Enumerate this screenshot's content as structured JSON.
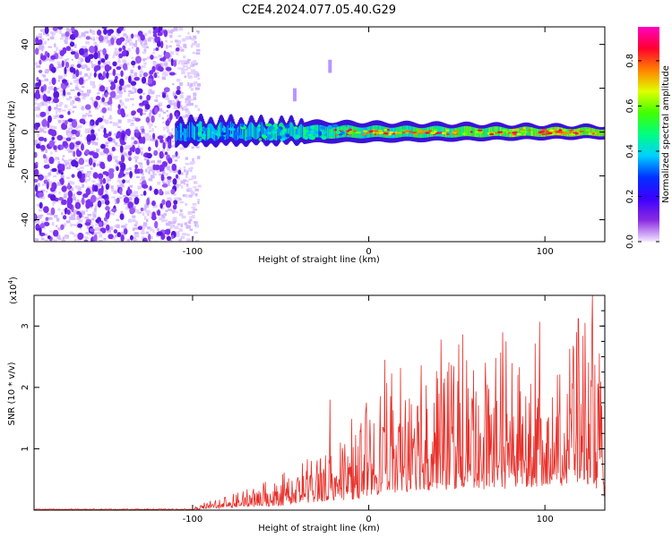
{
  "title": "C2E4.2024.077.05.40.G29",
  "chart_data": [
    {
      "type": "heatmap",
      "xlabel": "Height of straight line (km)",
      "ylabel": "Frequency (Hz)",
      "xlim": [
        -190,
        134
      ],
      "ylim": [
        -50,
        48
      ],
      "xticks": [
        -100,
        0,
        100
      ],
      "yticks": [
        -40,
        -20,
        0,
        20,
        40
      ],
      "colorbar": {
        "label": "Normalized spectral amplitude",
        "range": [
          0,
          0.95
        ],
        "ticks": [
          "0.0",
          "0.2",
          "0.4",
          "0.6",
          "0.8"
        ],
        "colormap": [
          "#f3e8ff",
          "#8a2be2",
          "#3c00ff",
          "#0030ff",
          "#00d0ff",
          "#00ff80",
          "#40ff00",
          "#e0ff00",
          "#ff8000",
          "#ff0030",
          "#ff00c0"
        ]
      },
      "features": {
        "noise_region_x": [
          -190,
          -105
        ],
        "signal_band_x": [
          -110,
          134
        ],
        "signal_center_freq_hz": 0,
        "signal_halfwidth_hz": [
          6,
          3
        ],
        "spikes_hz": [
          {
            "x": -22,
            "y": 30
          },
          {
            "x": -42,
            "y": 17
          }
        ]
      }
    },
    {
      "type": "line",
      "xlabel": "Height of straight line (km)",
      "ylabel": "SNR (10 * v/v)",
      "yscale_label": "(x10",
      "yscale_exp": "4",
      "yscale_close": ")",
      "xlim": [
        -190,
        134
      ],
      "ylim": [
        0,
        3.5
      ],
      "xticks": [
        -100,
        0,
        100
      ],
      "yticks": [
        1,
        2,
        3
      ],
      "color": "#e8302a",
      "envelope": [
        {
          "x": -190,
          "y": 0.01
        },
        {
          "x": -100,
          "y": 0.02
        },
        {
          "x": -90,
          "y": 0.2
        },
        {
          "x": -70,
          "y": 0.4
        },
        {
          "x": -55,
          "y": 0.5
        },
        {
          "x": -40,
          "y": 0.8
        },
        {
          "x": -30,
          "y": 1.1
        },
        {
          "x": -20,
          "y": 1.3
        },
        {
          "x": -10,
          "y": 1.4
        },
        {
          "x": 10,
          "y": 2.3
        },
        {
          "x": 40,
          "y": 2.7
        },
        {
          "x": 80,
          "y": 2.9
        },
        {
          "x": 100,
          "y": 3.1
        },
        {
          "x": 127,
          "y": 3.5
        },
        {
          "x": 134,
          "y": 1.5
        }
      ],
      "peaks": [
        {
          "x": -22,
          "y": 1.8
        },
        {
          "x": 9,
          "y": 2.45
        },
        {
          "x": 41,
          "y": 2.78
        },
        {
          "x": 51,
          "y": 2.7
        },
        {
          "x": 97,
          "y": 3.07
        },
        {
          "x": 118,
          "y": 2.9
        },
        {
          "x": 127,
          "y": 3.5
        }
      ]
    }
  ]
}
